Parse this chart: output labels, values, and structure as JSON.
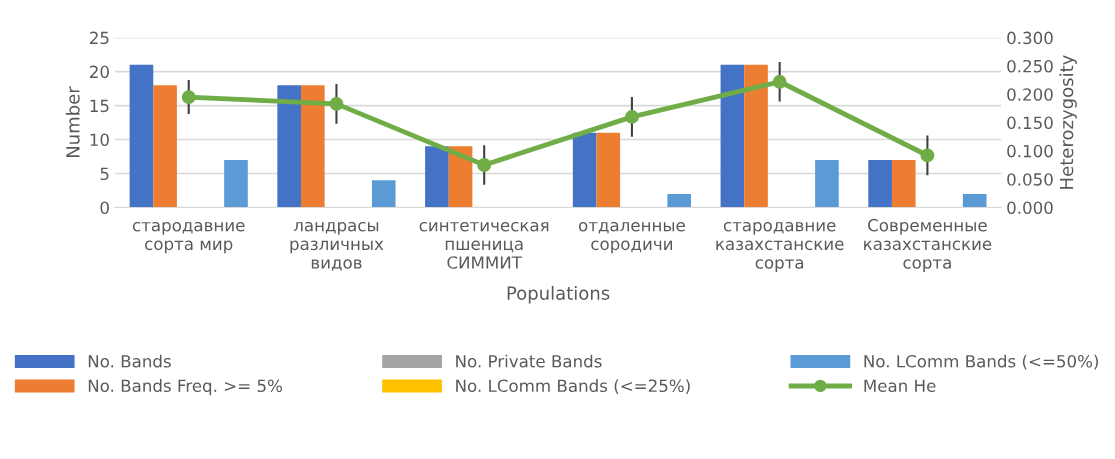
{
  "chart_data": {
    "type": "bar",
    "xlabel": "Populations",
    "ylabel": "Number",
    "y2label": "Heterozygosity",
    "categories": [
      "стародавние\nсорта мир",
      "ландрасы\nразличных\nвидов",
      "синтетическая\nпшеница\nСИММИТ",
      "отдаленные\nсородичи",
      "стародавние\nказахстанские\nсорта",
      "Современные\nказахстанские\nсорта"
    ],
    "series": [
      {
        "name": "No. Bands",
        "color": "#4472c4",
        "values": [
          21,
          18,
          9,
          11,
          21,
          7
        ]
      },
      {
        "name": "No. Bands Freq. >= 5%",
        "color": "#ed7d31",
        "values": [
          18,
          18,
          9,
          11,
          21,
          7
        ]
      },
      {
        "name": "No. Private Bands",
        "color": "#a5a5a5",
        "values": [
          0,
          0,
          0,
          0,
          0,
          0
        ]
      },
      {
        "name": "No. LComm Bands (<=25%)",
        "color": "#ffc000",
        "values": [
          0,
          0,
          0,
          0,
          0,
          0
        ]
      },
      {
        "name": "No. LComm Bands (<=50%)",
        "color": "#5b9bd5",
        "values": [
          7,
          4,
          0,
          2,
          7,
          2
        ]
      },
      {
        "name": "Mean He",
        "type": "line",
        "axis": "y2",
        "color": "#70ad47",
        "marker": "circle",
        "values": [
          0.195,
          0.183,
          0.075,
          0.16,
          0.222,
          0.092
        ],
        "errors": [
          0.03,
          0.035,
          0.035,
          0.035,
          0.035,
          0.035
        ]
      }
    ],
    "ylim": [
      0,
      25
    ],
    "yticks": [
      0,
      5,
      10,
      15,
      20,
      25
    ],
    "y2lim": [
      0,
      0.3
    ],
    "y2ticks": [
      {
        "value": 0,
        "label": "0.000"
      },
      {
        "value": 0.05,
        "label": "0.050"
      },
      {
        "value": 0.1,
        "label": "0.100"
      },
      {
        "value": 0.15,
        "label": "0.150"
      },
      {
        "value": 0.2,
        "label": "0.200"
      },
      {
        "value": 0.25,
        "label": "0.250"
      },
      {
        "value": 0.3,
        "label": "0.300"
      }
    ],
    "grid": "y",
    "legend": "bottom"
  }
}
